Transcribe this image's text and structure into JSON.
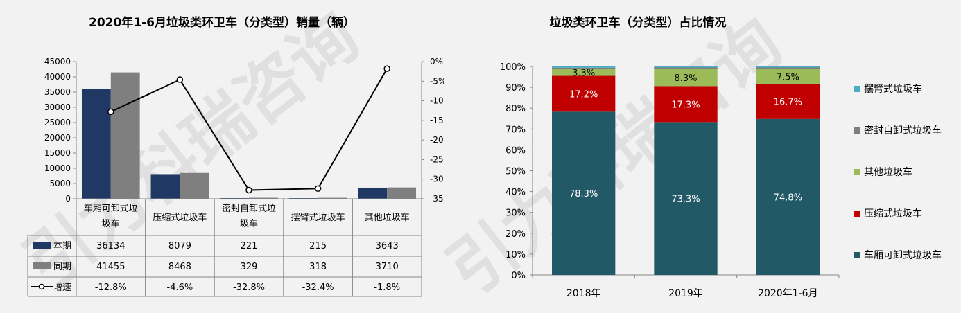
{
  "watermark": "引力科瑞咨询",
  "chart_data": [
    {
      "type": "bar",
      "title": "2020年1-6月垃圾类环卫车（分类型）销量（辆）",
      "categories": [
        "车厢可卸式垃圾车",
        "压缩式垃圾车",
        "密封自卸式垃圾车",
        "摆臂式垃圾车",
        "其他垃圾车"
      ],
      "category_lines": [
        [
          "车厢可卸式垃",
          "圾车"
        ],
        [
          "压缩式垃圾车"
        ],
        [
          "密封自卸式垃",
          "圾车"
        ],
        [
          "摆臂式垃圾车"
        ],
        [
          "其他垃圾车"
        ]
      ],
      "ylim": [
        0,
        45000
      ],
      "y_ticks": [
        "0",
        "5000",
        "10000",
        "15000",
        "20000",
        "25000",
        "30000",
        "35000",
        "40000",
        "45000"
      ],
      "y2lim": [
        -35,
        0
      ],
      "y2_ticks": [
        "0%",
        "-5%",
        "-10%",
        "-15%",
        "-20%",
        "-25%",
        "-30%",
        "-35%"
      ],
      "series": [
        {
          "name": "本期",
          "type": "bar",
          "color": "#1f3864",
          "values": [
            36134,
            8079,
            221,
            215,
            3643
          ],
          "labels": [
            "36134",
            "8079",
            "221",
            "215",
            "3643"
          ]
        },
        {
          "name": "同期",
          "type": "bar",
          "color": "#7f7f7f",
          "values": [
            41455,
            8468,
            329,
            318,
            3710
          ],
          "labels": [
            "41455",
            "8468",
            "329",
            "318",
            "3710"
          ]
        },
        {
          "name": "增速",
          "type": "line",
          "axis": "y2",
          "color": "#000000",
          "values": [
            -12.8,
            -4.6,
            -32.8,
            -32.4,
            -1.8
          ],
          "labels": [
            "-12.8%",
            "-4.6%",
            "-32.8%",
            "-32.4%",
            "-1.8%"
          ]
        }
      ]
    },
    {
      "type": "bar",
      "stacked": true,
      "title": "垃圾类环卫车（分类型）占比情况",
      "categories": [
        "2018年",
        "2019年",
        "2020年1-6月"
      ],
      "ylim": [
        0,
        100
      ],
      "y_ticks": [
        "0%",
        "10%",
        "20%",
        "30%",
        "40%",
        "50%",
        "60%",
        "70%",
        "80%",
        "90%",
        "100%"
      ],
      "legend_position": "right",
      "series": [
        {
          "name": "车厢可卸式垃圾车",
          "color": "#215967",
          "values": [
            78.3,
            73.3,
            74.8
          ],
          "labels": [
            "78.3%",
            "73.3%",
            "74.8%"
          ]
        },
        {
          "name": "压缩式垃圾车",
          "color": "#c00000",
          "values": [
            17.2,
            17.3,
            16.7
          ],
          "labels": [
            "17.2%",
            "17.3%",
            "16.7%"
          ]
        },
        {
          "name": "其他垃圾车",
          "color": "#9bbb59",
          "values": [
            3.3,
            8.3,
            7.5
          ],
          "labels": [
            "3.3%",
            "8.3%",
            "7.5%"
          ]
        },
        {
          "name": "密封自卸式垃圾车",
          "color": "#7f7f7f",
          "values": [
            0.6,
            0.6,
            0.5
          ],
          "labels": [
            "",
            "",
            ""
          ]
        },
        {
          "name": "摆臂式垃圾车",
          "color": "#4bacc6",
          "values": [
            0.6,
            0.5,
            0.5
          ],
          "labels": [
            "",
            "",
            ""
          ]
        }
      ]
    }
  ]
}
